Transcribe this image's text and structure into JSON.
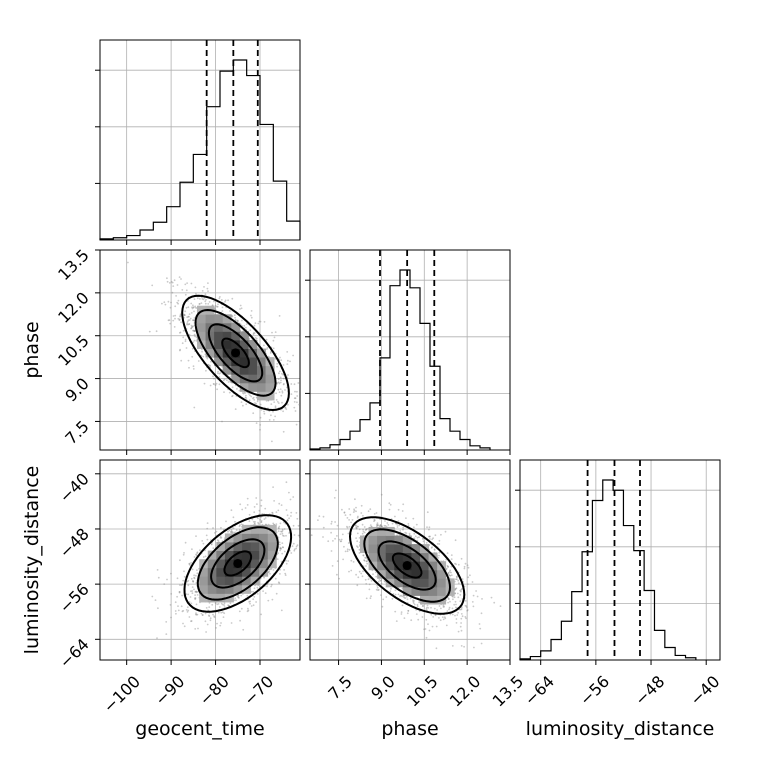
{
  "chart_data": {
    "type": "corner",
    "parameters": [
      "geocent_time",
      "phase",
      "luminosity_distance"
    ],
    "axis_labels": {
      "x": [
        "geocent_time",
        "phase",
        "luminosity_distance"
      ],
      "y": [
        "",
        "phase",
        "luminosity_distance"
      ]
    },
    "ranges": {
      "geocent_time": [
        -106,
        -61
      ],
      "phase": [
        6.5,
        13.5
      ],
      "luminosity_distance": [
        -67,
        -38
      ]
    },
    "ticks": {
      "geocent_time": [
        -100,
        -90,
        -80,
        -70
      ],
      "phase": [
        7.5,
        9.0,
        10.5,
        12.0,
        13.5
      ],
      "luminosity_distance": [
        -64,
        -56,
        -48,
        -40
      ]
    },
    "tick_labels": {
      "geocent_time": [
        "−100",
        "−90",
        "−80",
        "−70"
      ],
      "phase": [
        "7.5",
        "9.0",
        "10.5",
        "12.0",
        "13.5"
      ],
      "luminosity_distance": [
        "−64",
        "−56",
        "−48",
        "−40"
      ]
    },
    "quantiles": {
      "geocent_time": [
        -82,
        -76,
        -70.5
      ],
      "phase": [
        8.95,
        9.9,
        10.85
      ],
      "luminosity_distance": [
        -57.2,
        -53.3,
        -49.6
      ]
    },
    "histograms": {
      "geocent_time": {
        "edges": [
          -106,
          -103,
          -100,
          -97,
          -94,
          -91,
          -88,
          -85,
          -82,
          -79,
          -76,
          -73,
          -70,
          -67,
          -64,
          -61
        ],
        "counts": [
          1,
          2,
          4,
          9,
          16,
          30,
          52,
          77,
          120,
          152,
          162,
          148,
          104,
          53,
          17
        ]
      },
      "phase": {
        "edges": [
          6.5,
          6.85,
          7.2,
          7.55,
          7.9,
          8.25,
          8.6,
          8.95,
          9.3,
          9.65,
          10.0,
          10.35,
          10.7,
          11.05,
          11.4,
          11.75,
          12.1,
          12.45,
          12.8
        ],
        "counts": [
          1,
          2,
          5,
          10,
          18,
          29,
          45,
          88,
          157,
          172,
          155,
          121,
          80,
          30,
          18,
          10,
          4,
          2
        ]
      },
      "luminosity_distance": {
        "edges": [
          -67,
          -65.5,
          -64,
          -62.5,
          -61,
          -59.5,
          -58,
          -56.5,
          -55,
          -53.5,
          -52,
          -50.5,
          -49,
          -47.5,
          -46,
          -44.5,
          -43,
          -41.5
        ],
        "counts": [
          1,
          3,
          8,
          18,
          34,
          60,
          95,
          140,
          158,
          149,
          118,
          96,
          61,
          26,
          11,
          4,
          2
        ]
      }
    },
    "pairs": [
      {
        "x": "geocent_time",
        "y": "phase",
        "peak": [
          -75.5,
          9.9
        ],
        "sigma": [
          6.0,
          1.0
        ],
        "correlation": -0.7
      },
      {
        "x": "geocent_time",
        "y": "luminosity_distance",
        "peak": [
          -75,
          -53
        ],
        "sigma": [
          6.0,
          3.5
        ],
        "correlation": 0.55
      },
      {
        "x": "phase",
        "y": "luminosity_distance",
        "peak": [
          9.9,
          -53.3
        ],
        "sigma": [
          1.0,
          3.5
        ],
        "correlation": -0.6
      }
    ],
    "contour_levels": [
      0.5,
      1.0,
      1.5,
      2.0
    ],
    "grid": true
  }
}
